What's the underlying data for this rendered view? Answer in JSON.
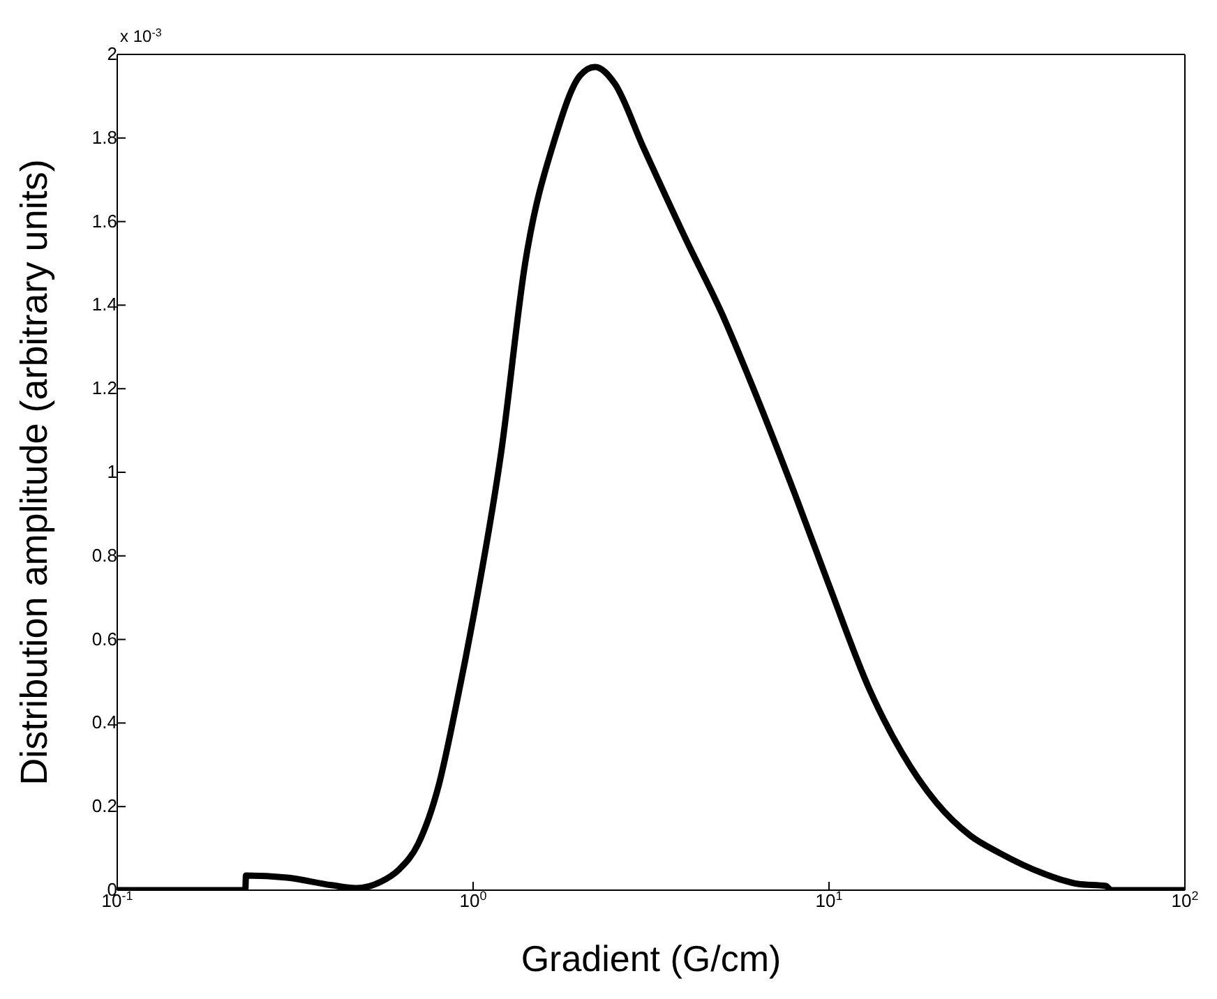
{
  "chart_data": {
    "type": "line",
    "xlabel": "Gradient (G/cm)",
    "ylabel": "Distribution amplitude (arbitrary units)",
    "annotations": [
      "x 10$^{-3}$"
    ],
    "log": "x",
    "marker": "none",
    "line_style": "solid",
    "xlim": [
      0.1,
      100
    ],
    "xticks": [
      {
        "value": 0.1,
        "label": "10$^{-1}$"
      },
      {
        "value": 1,
        "label": "10$^{0}$"
      },
      {
        "value": 10,
        "label": "10$^{1}$"
      },
      {
        "value": 100,
        "label": "10$^{2}$"
      }
    ],
    "ylim": [
      0,
      2
    ],
    "yticks": [
      0,
      0.2,
      0.4,
      0.6,
      0.8,
      1,
      1.2,
      1.4,
      1.6,
      1.8,
      2
    ],
    "series": [
      {
        "color": "#000000",
        "x": [
          0.1,
          0.229,
          0.23,
          0.3,
          0.4,
          0.47,
          0.55,
          0.62,
          0.7,
          0.8,
          0.9,
          1,
          1.2,
          1.4,
          1.7,
          2,
          2.2,
          2.5,
          3,
          4,
          5,
          6,
          8,
          10,
          13,
          16,
          20,
          25,
          30,
          40,
          50,
          60,
          62,
          100
        ],
        "values": [
          0,
          0,
          0.035,
          0.03,
          0.012,
          0.005,
          0.02,
          0.05,
          0.11,
          0.25,
          0.45,
          0.65,
          1.05,
          1.5,
          1.8,
          1.95,
          1.97,
          1.93,
          1.78,
          1.55,
          1.38,
          1.22,
          0.95,
          0.73,
          0.48,
          0.33,
          0.21,
          0.13,
          0.09,
          0.04,
          0.015,
          0.01,
          0,
          0
        ]
      }
    ]
  }
}
